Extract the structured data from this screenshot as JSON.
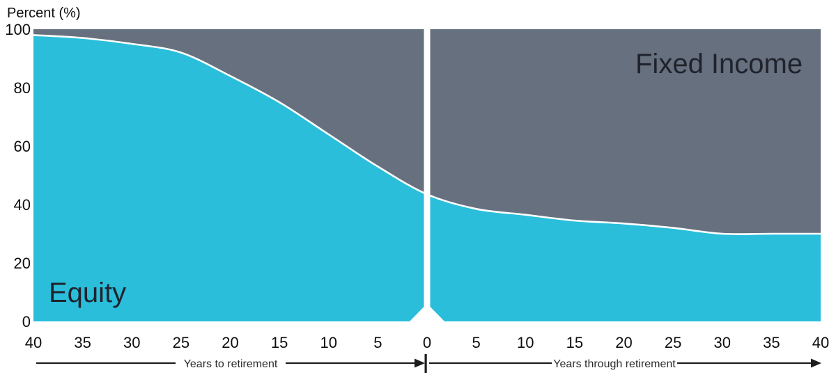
{
  "page": {
    "background": "#ffffff"
  },
  "chart_data": {
    "type": "area",
    "subtype": "stacked-100-percent-glide-path",
    "ylabel": "Percent (%)",
    "ylim": [
      0,
      100
    ],
    "xlim": [
      -40,
      40
    ],
    "grid": false,
    "y_ticks": [
      100,
      80,
      60,
      40,
      20,
      0
    ],
    "x": [
      -40,
      -35,
      -30,
      -25,
      -20,
      -15,
      -10,
      -5,
      0,
      5,
      10,
      15,
      20,
      25,
      30,
      35,
      40
    ],
    "x_tick_labels": [
      "40",
      "35",
      "30",
      "25",
      "20",
      "15",
      "10",
      "5",
      "0",
      "5",
      "10",
      "15",
      "20",
      "25",
      "30",
      "35",
      "40"
    ],
    "x_axis": {
      "left_label": "Years to retirement",
      "right_label": "Years through retirement"
    },
    "series": [
      {
        "name": "Equity",
        "color": "#2ABEDB",
        "values": [
          98,
          97,
          95,
          92,
          84,
          75,
          64,
          53,
          43.5,
          38.5,
          36.5,
          34.5,
          33.5,
          32,
          30,
          30,
          30
        ]
      },
      {
        "name": "Fixed Income",
        "color": "#66707E",
        "values": [
          2,
          3,
          5,
          8,
          16,
          25,
          36,
          47,
          56.5,
          61.5,
          63.5,
          65.5,
          66.5,
          68,
          70,
          70,
          70
        ]
      }
    ],
    "boundary_line_color": "#ffffff",
    "divider": {
      "x": 0,
      "color": "#ffffff"
    },
    "legend_position": "labels-inside-areas"
  }
}
